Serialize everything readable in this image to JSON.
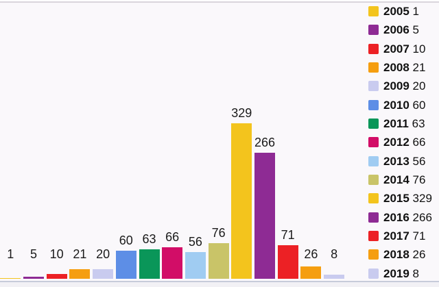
{
  "chart_data": {
    "type": "bar",
    "title": "",
    "xlabel": "",
    "ylabel": "",
    "categories": [
      "2005",
      "2006",
      "2007",
      "2008",
      "2009",
      "2010",
      "2011",
      "2012",
      "2013",
      "2014",
      "2015",
      "2016",
      "2017",
      "2018",
      "2019"
    ],
    "values": [
      1,
      5,
      10,
      21,
      20,
      60,
      63,
      66,
      56,
      76,
      329,
      266,
      71,
      26,
      8
    ],
    "bar_colors": [
      "#F3C41D",
      "#8E2B94",
      "#EC2125",
      "#F59E10",
      "#C9CBEF",
      "#5D8EE6",
      "#0A9659",
      "#D20D67",
      "#A0CCF2",
      "#C9C468",
      "#F3C41D",
      "#8E2B94",
      "#EC2125",
      "#F59E10",
      "#C9CBEF"
    ],
    "value_labels_shown": true,
    "axes_shown": false,
    "grid": false,
    "ylim": [
      0,
      340
    ],
    "legend_position": "right",
    "legend_entries": [
      {
        "label": "2005",
        "value": "1"
      },
      {
        "label": "2006",
        "value": "5"
      },
      {
        "label": "2007",
        "value": "10"
      },
      {
        "label": "2008",
        "value": "21"
      },
      {
        "label": "2009",
        "value": "20"
      },
      {
        "label": "2010",
        "value": "60"
      },
      {
        "label": "2011",
        "value": "63"
      },
      {
        "label": "2012",
        "value": "66"
      },
      {
        "label": "2013",
        "value": "56"
      },
      {
        "label": "2014",
        "value": "76"
      },
      {
        "label": "2015",
        "value": "329"
      },
      {
        "label": "2016",
        "value": "266"
      },
      {
        "label": "2017",
        "value": "71"
      },
      {
        "label": "2018",
        "value": "26"
      },
      {
        "label": "2019",
        "value": "8"
      }
    ]
  },
  "colors": {
    "chart_background": "#FAF8FB",
    "page_background": "#FFFFFF",
    "top_divider": "#D9D5DC",
    "bottom_divider": "#C7CBDA",
    "bottom_strip": "#F2F1F5",
    "label_text": "#1A1A1A"
  }
}
